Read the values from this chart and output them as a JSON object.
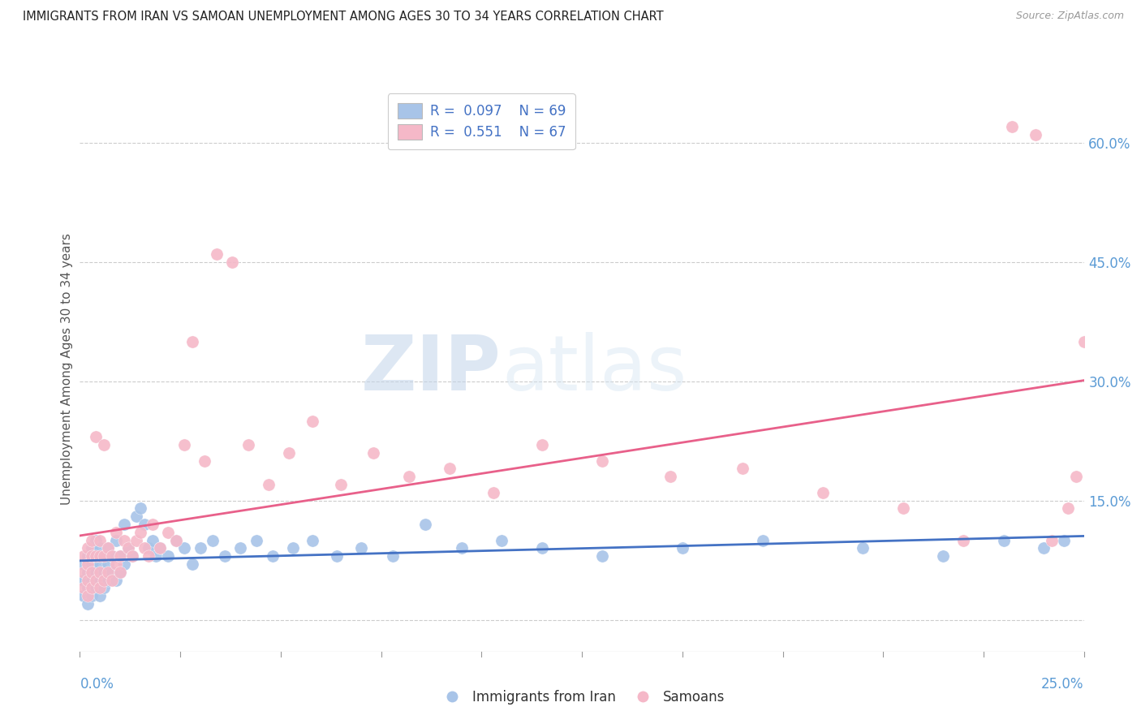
{
  "title": "IMMIGRANTS FROM IRAN VS SAMOAN UNEMPLOYMENT AMONG AGES 30 TO 34 YEARS CORRELATION CHART",
  "source": "Source: ZipAtlas.com",
  "ylabel": "Unemployment Among Ages 30 to 34 years",
  "blue_color": "#a8c4e8",
  "pink_color": "#f5b8c8",
  "blue_line_color": "#4472c4",
  "pink_line_color": "#e8608a",
  "axis_label_color": "#5b9bd5",
  "background_color": "#ffffff",
  "xlim": [
    0.0,
    0.25
  ],
  "ylim": [
    -0.04,
    0.67
  ],
  "yticks": [
    0.0,
    0.15,
    0.3,
    0.45,
    0.6
  ],
  "ytick_labels": [
    "",
    "15.0%",
    "30.0%",
    "45.0%",
    "60.0%"
  ],
  "iran_x": [
    0.001,
    0.001,
    0.001,
    0.002,
    0.002,
    0.002,
    0.002,
    0.003,
    0.003,
    0.003,
    0.003,
    0.004,
    0.004,
    0.004,
    0.004,
    0.005,
    0.005,
    0.005,
    0.005,
    0.006,
    0.006,
    0.006,
    0.007,
    0.007,
    0.007,
    0.008,
    0.008,
    0.009,
    0.009,
    0.01,
    0.01,
    0.011,
    0.011,
    0.012,
    0.013,
    0.014,
    0.015,
    0.016,
    0.017,
    0.018,
    0.019,
    0.02,
    0.022,
    0.024,
    0.026,
    0.028,
    0.03,
    0.033,
    0.036,
    0.04,
    0.044,
    0.048,
    0.053,
    0.058,
    0.064,
    0.07,
    0.078,
    0.086,
    0.095,
    0.105,
    0.115,
    0.13,
    0.15,
    0.17,
    0.195,
    0.215,
    0.23,
    0.24,
    0.245
  ],
  "iran_y": [
    0.03,
    0.05,
    0.07,
    0.02,
    0.04,
    0.06,
    0.08,
    0.03,
    0.05,
    0.07,
    0.09,
    0.04,
    0.06,
    0.08,
    0.1,
    0.03,
    0.05,
    0.07,
    0.09,
    0.04,
    0.06,
    0.08,
    0.05,
    0.07,
    0.09,
    0.06,
    0.08,
    0.05,
    0.1,
    0.06,
    0.08,
    0.07,
    0.12,
    0.09,
    0.08,
    0.13,
    0.14,
    0.12,
    0.09,
    0.1,
    0.08,
    0.09,
    0.08,
    0.1,
    0.09,
    0.07,
    0.09,
    0.1,
    0.08,
    0.09,
    0.1,
    0.08,
    0.09,
    0.1,
    0.08,
    0.09,
    0.08,
    0.12,
    0.09,
    0.1,
    0.09,
    0.08,
    0.09,
    0.1,
    0.09,
    0.08,
    0.1,
    0.09,
    0.1
  ],
  "samoan_x": [
    0.001,
    0.001,
    0.001,
    0.002,
    0.002,
    0.002,
    0.002,
    0.003,
    0.003,
    0.003,
    0.003,
    0.004,
    0.004,
    0.004,
    0.005,
    0.005,
    0.005,
    0.005,
    0.006,
    0.006,
    0.006,
    0.007,
    0.007,
    0.008,
    0.008,
    0.009,
    0.009,
    0.01,
    0.01,
    0.011,
    0.012,
    0.013,
    0.014,
    0.015,
    0.016,
    0.017,
    0.018,
    0.02,
    0.022,
    0.024,
    0.026,
    0.028,
    0.031,
    0.034,
    0.038,
    0.042,
    0.047,
    0.052,
    0.058,
    0.065,
    0.073,
    0.082,
    0.092,
    0.103,
    0.115,
    0.13,
    0.147,
    0.165,
    0.185,
    0.205,
    0.22,
    0.232,
    0.238,
    0.242,
    0.246,
    0.248,
    0.25
  ],
  "samoan_y": [
    0.04,
    0.06,
    0.08,
    0.03,
    0.05,
    0.07,
    0.09,
    0.04,
    0.06,
    0.08,
    0.1,
    0.05,
    0.08,
    0.23,
    0.04,
    0.06,
    0.08,
    0.1,
    0.05,
    0.08,
    0.22,
    0.06,
    0.09,
    0.05,
    0.08,
    0.07,
    0.11,
    0.06,
    0.08,
    0.1,
    0.09,
    0.08,
    0.1,
    0.11,
    0.09,
    0.08,
    0.12,
    0.09,
    0.11,
    0.1,
    0.22,
    0.35,
    0.2,
    0.46,
    0.45,
    0.22,
    0.17,
    0.21,
    0.25,
    0.17,
    0.21,
    0.18,
    0.19,
    0.16,
    0.22,
    0.2,
    0.18,
    0.19,
    0.16,
    0.14,
    0.1,
    0.62,
    0.61,
    0.1,
    0.14,
    0.18,
    0.35
  ]
}
